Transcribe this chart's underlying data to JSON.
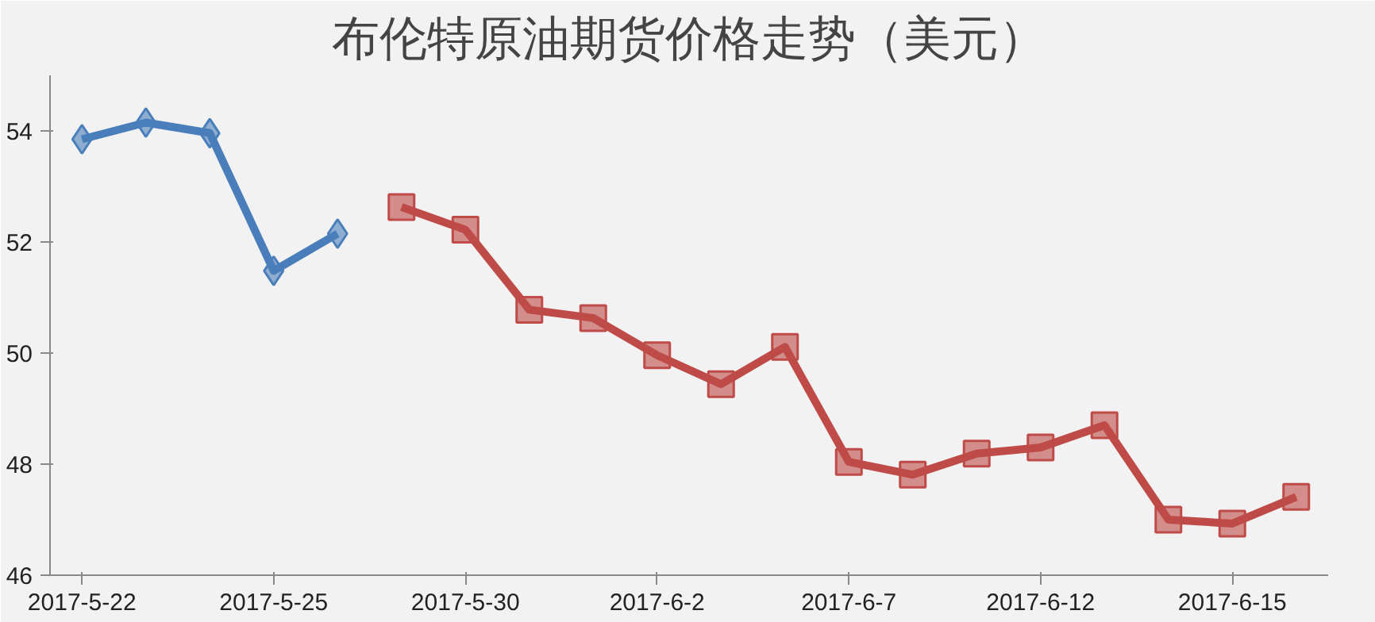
{
  "chart_data": {
    "type": "line",
    "title": "布伦特原油期货价格走势（美元）",
    "categories": [
      "2017-5-22",
      null,
      null,
      "2017-5-25",
      null,
      null,
      "2017-5-30",
      null,
      null,
      "2017-6-2",
      null,
      null,
      "2017-6-7",
      null,
      null,
      "2017-6-12",
      null,
      null,
      "2017-6-15",
      null
    ],
    "series": [
      {
        "color": "#4a7ebb",
        "marker": "diamond",
        "values": [
          53.85,
          54.15,
          53.96,
          51.48,
          52.15,
          null,
          null,
          null,
          null,
          null,
          null,
          null,
          null,
          null,
          null,
          null,
          null,
          null,
          null,
          null
        ]
      },
      {
        "color": "#be4b48",
        "marker": "square",
        "values": [
          null,
          null,
          null,
          null,
          null,
          52.63,
          52.22,
          50.78,
          50.63,
          49.96,
          49.44,
          50.11,
          48.04,
          47.81,
          48.19,
          48.3,
          48.7,
          47.0,
          46.93,
          47.41
        ]
      }
    ],
    "ylim": [
      46,
      55
    ],
    "yticks": [
      46,
      48,
      50,
      52,
      54
    ],
    "grid": false
  }
}
